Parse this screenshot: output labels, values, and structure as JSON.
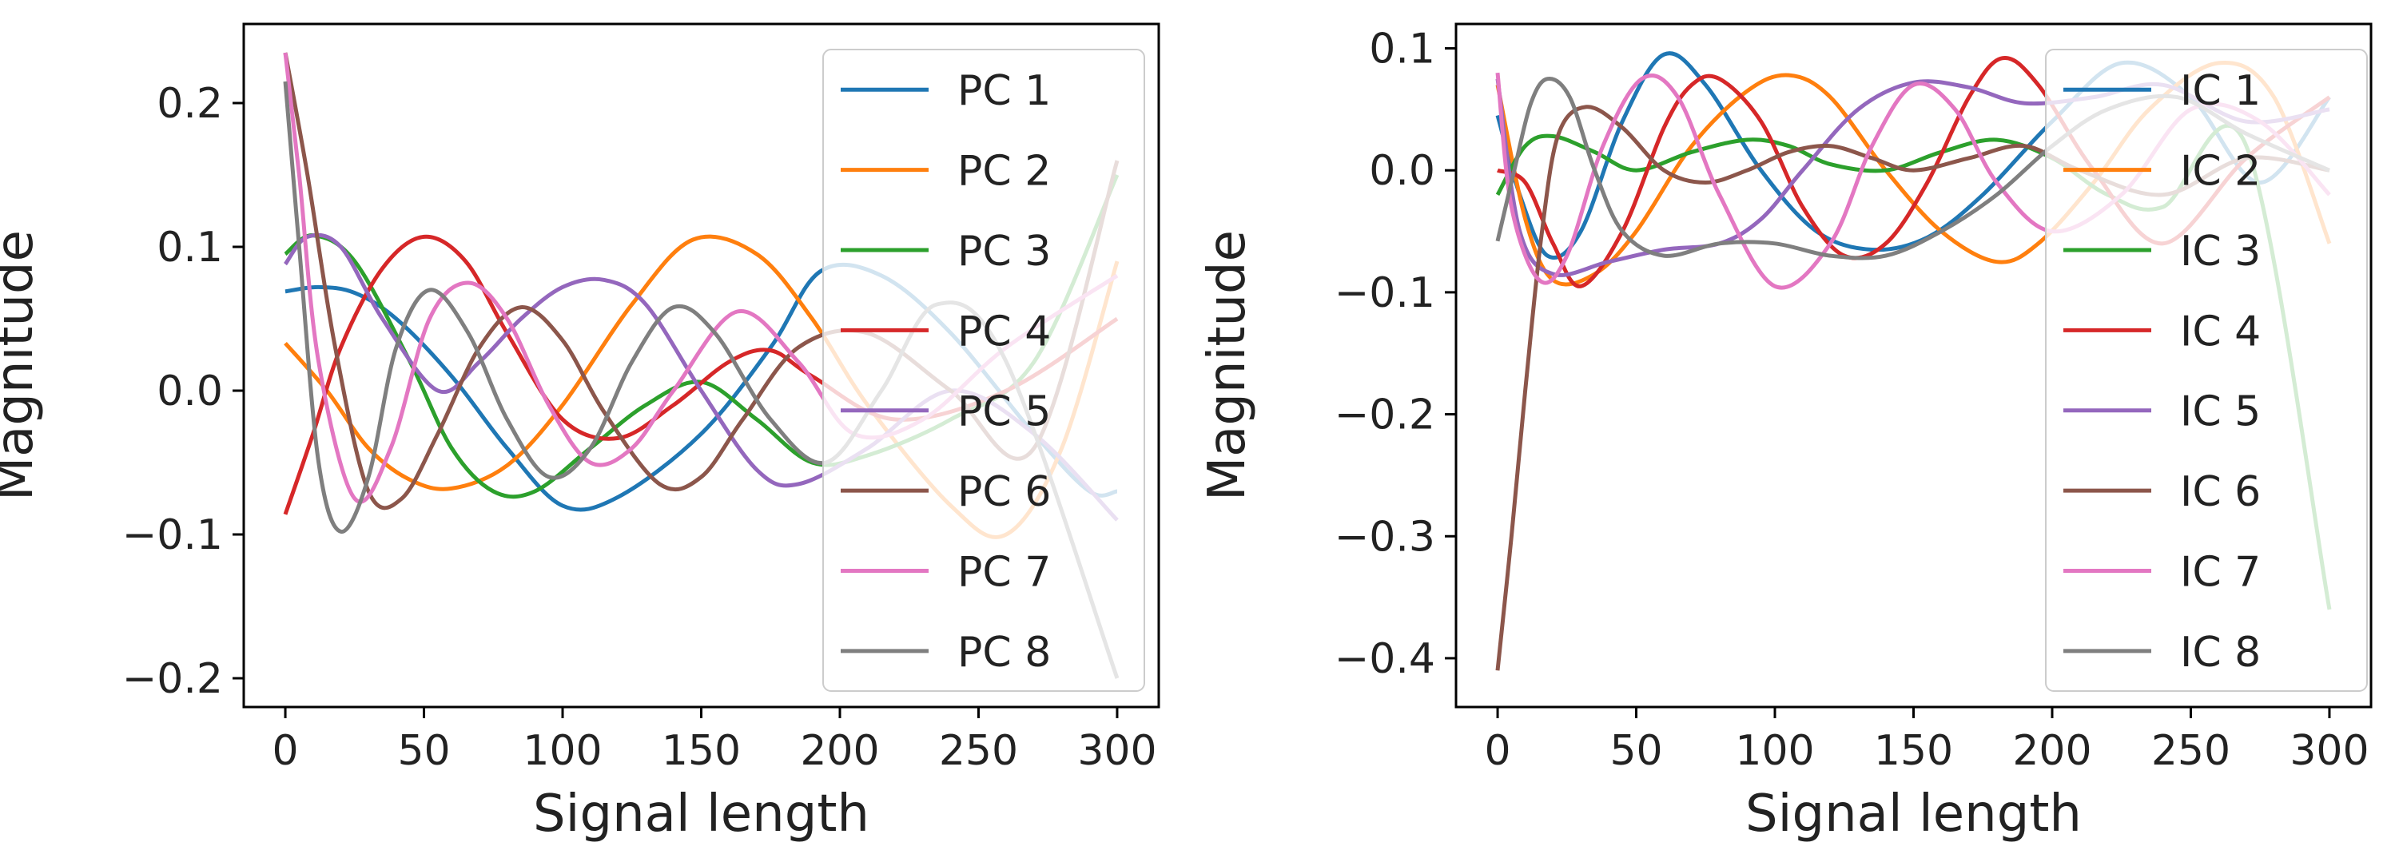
{
  "colors": [
    "#1f77b4",
    "#ff7f0e",
    "#2ca02c",
    "#d62728",
    "#9467bd",
    "#8c564b",
    "#e377c2",
    "#7f7f7f"
  ],
  "chart_data": [
    {
      "type": "line",
      "title": "",
      "xlabel": "Signal length",
      "ylabel": "Magnitude",
      "xlim": [
        -15,
        315
      ],
      "ylim": [
        -0.22,
        0.255
      ],
      "xticks": [
        0,
        50,
        100,
        150,
        200,
        250,
        300
      ],
      "yticks": [
        -0.2,
        -0.1,
        0.0,
        0.1,
        0.2
      ],
      "xtick_labels": [
        "0",
        "50",
        "100",
        "150",
        "200",
        "250",
        "300"
      ],
      "ytick_labels": [
        "−0.2",
        "−0.1",
        "0.0",
        "0.1",
        "0.2"
      ],
      "legend_position": "right",
      "series": [
        {
          "name": "PC 1",
          "x": [
            0,
            12,
            25,
            40,
            60,
            80,
            100,
            120,
            150,
            175,
            193,
            215,
            240,
            270,
            290,
            300
          ],
          "y": [
            0.069,
            0.072,
            0.068,
            0.05,
            0.01,
            -0.04,
            -0.08,
            -0.074,
            -0.03,
            0.03,
            0.083,
            0.08,
            0.04,
            -0.03,
            -0.07,
            -0.07
          ]
        },
        {
          "name": "PC 2",
          "x": [
            0,
            15,
            30,
            45,
            60,
            80,
            100,
            125,
            147,
            170,
            190,
            210,
            240,
            260,
            280,
            300
          ],
          "y": [
            0.033,
            0.0,
            -0.04,
            -0.062,
            -0.068,
            -0.052,
            -0.01,
            0.06,
            0.105,
            0.095,
            0.05,
            -0.01,
            -0.08,
            -0.1,
            -0.04,
            0.09
          ]
        },
        {
          "name": "PC 3",
          "x": [
            0,
            10,
            25,
            45,
            60,
            75,
            90,
            110,
            130,
            150,
            170,
            190,
            210,
            240,
            270,
            300
          ],
          "y": [
            0.095,
            0.108,
            0.09,
            0.02,
            -0.04,
            -0.07,
            -0.07,
            -0.04,
            -0.01,
            0.006,
            -0.02,
            -0.05,
            -0.045,
            -0.02,
            0.02,
            0.15
          ]
        },
        {
          "name": "PC 4",
          "x": [
            0,
            10,
            20,
            35,
            50,
            65,
            80,
            100,
            120,
            140,
            160,
            175,
            190,
            220,
            260,
            300
          ],
          "y": [
            -0.086,
            -0.03,
            0.03,
            0.085,
            0.107,
            0.09,
            0.04,
            -0.02,
            -0.033,
            -0.01,
            0.02,
            0.028,
            0.01,
            -0.02,
            0.0,
            0.05
          ]
        },
        {
          "name": "PC 5",
          "x": [
            0,
            8,
            20,
            35,
            55,
            70,
            85,
            100,
            115,
            130,
            150,
            170,
            185,
            210,
            240,
            270,
            300
          ],
          "y": [
            0.088,
            0.107,
            0.1,
            0.05,
            0.0,
            0.02,
            0.05,
            0.072,
            0.077,
            0.06,
            0.0,
            -0.055,
            -0.065,
            -0.04,
            0.0,
            -0.03,
            -0.09
          ]
        },
        {
          "name": "PC 6",
          "x": [
            0,
            8,
            18,
            30,
            42,
            55,
            70,
            85,
            100,
            115,
            135,
            150,
            165,
            185,
            210,
            240,
            270,
            300
          ],
          "y": [
            0.235,
            0.15,
            0.03,
            -0.07,
            -0.075,
            -0.03,
            0.03,
            0.058,
            0.035,
            -0.015,
            -0.065,
            -0.06,
            -0.02,
            0.03,
            0.04,
            0.0,
            -0.04,
            0.16
          ]
        },
        {
          "name": "PC 7",
          "x": [
            0,
            5,
            12,
            25,
            38,
            52,
            66,
            80,
            95,
            110,
            125,
            140,
            163,
            185,
            205,
            230,
            260,
            300
          ],
          "y": [
            0.235,
            0.15,
            0.02,
            -0.075,
            -0.04,
            0.05,
            0.075,
            0.05,
            -0.01,
            -0.05,
            -0.04,
            0.0,
            0.055,
            0.02,
            -0.03,
            -0.02,
            0.03,
            0.08
          ]
        },
        {
          "name": "PC 8",
          "x": [
            0,
            5,
            12,
            20,
            30,
            40,
            52,
            66,
            80,
            95,
            110,
            125,
            140,
            155,
            175,
            195,
            215,
            235,
            260,
            300
          ],
          "y": [
            0.215,
            0.1,
            -0.05,
            -0.098,
            -0.06,
            0.03,
            0.07,
            0.04,
            -0.02,
            -0.06,
            -0.04,
            0.02,
            0.058,
            0.04,
            -0.02,
            -0.05,
            0.0,
            0.06,
            0.02,
            -0.2
          ]
        }
      ]
    },
    {
      "type": "line",
      "title": "",
      "xlabel": "Signal length",
      "ylabel": "Magnitude",
      "xlim": [
        -15,
        315
      ],
      "ylim": [
        -0.44,
        0.12
      ],
      "xticks": [
        0,
        50,
        100,
        150,
        200,
        250,
        300
      ],
      "yticks": [
        -0.4,
        -0.3,
        -0.2,
        -0.1,
        0.0,
        0.1
      ],
      "xtick_labels": [
        "0",
        "50",
        "100",
        "150",
        "200",
        "250",
        "300"
      ],
      "ytick_labels": [
        "−0.4",
        "−0.3",
        "−0.2",
        "−0.1",
        "0.0",
        "0.1"
      ],
      "legend_position": "right",
      "series": [
        {
          "name": "IC 1",
          "x": [
            0,
            8,
            18,
            30,
            45,
            60,
            75,
            95,
            115,
            135,
            155,
            175,
            200,
            225,
            250,
            275,
            300
          ],
          "y": [
            0.045,
            -0.02,
            -0.07,
            -0.05,
            0.04,
            0.095,
            0.07,
            0.0,
            -0.05,
            -0.065,
            -0.055,
            -0.02,
            0.04,
            0.088,
            0.06,
            -0.01,
            0.06
          ]
        },
        {
          "name": "IC 2",
          "x": [
            0,
            10,
            20,
            35,
            50,
            70,
            90,
            105,
            120,
            140,
            160,
            180,
            195,
            215,
            235,
            260,
            280,
            300
          ],
          "y": [
            0.07,
            -0.04,
            -0.09,
            -0.085,
            -0.05,
            0.02,
            0.065,
            0.078,
            0.06,
            0.0,
            -0.05,
            -0.075,
            -0.06,
            -0.01,
            0.05,
            0.088,
            0.06,
            -0.06
          ]
        },
        {
          "name": "IC 3",
          "x": [
            0,
            10,
            20,
            35,
            50,
            70,
            90,
            105,
            120,
            140,
            160,
            180,
            200,
            220,
            240,
            270,
            300
          ],
          "y": [
            -0.02,
            0.02,
            0.028,
            0.015,
            0.0,
            0.015,
            0.025,
            0.02,
            0.005,
            0.0,
            0.015,
            0.025,
            0.01,
            -0.02,
            -0.03,
            0.02,
            -0.36
          ]
        },
        {
          "name": "IC 4",
          "x": [
            0,
            10,
            20,
            30,
            45,
            60,
            70,
            80,
            95,
            110,
            125,
            140,
            155,
            170,
            182,
            195,
            215,
            240,
            270,
            300
          ],
          "y": [
            0.0,
            -0.01,
            -0.06,
            -0.095,
            -0.05,
            0.035,
            0.07,
            0.075,
            0.04,
            -0.03,
            -0.07,
            -0.06,
            -0.01,
            0.06,
            0.092,
            0.07,
            0.0,
            -0.06,
            0.01,
            0.06
          ]
        },
        {
          "name": "IC 5",
          "x": [
            0,
            8,
            20,
            40,
            60,
            80,
            95,
            110,
            130,
            150,
            170,
            190,
            215,
            240,
            270,
            300
          ],
          "y": [
            0.075,
            -0.05,
            -0.085,
            -0.075,
            -0.065,
            -0.06,
            -0.04,
            0.0,
            0.05,
            0.072,
            0.068,
            0.055,
            0.06,
            0.07,
            0.04,
            0.05
          ]
        },
        {
          "name": "IC 6",
          "x": [
            0,
            5,
            10,
            16,
            22,
            32,
            45,
            60,
            75,
            90,
            105,
            120,
            135,
            150,
            170,
            190,
            210,
            240,
            270,
            300
          ],
          "y": [
            -0.41,
            -0.3,
            -0.18,
            -0.05,
            0.03,
            0.052,
            0.035,
            0.0,
            -0.01,
            0.0,
            0.015,
            0.02,
            0.01,
            0.0,
            0.01,
            0.02,
            0.0,
            -0.02,
            0.01,
            0.0
          ]
        },
        {
          "name": "IC 7",
          "x": [
            0,
            5,
            15,
            25,
            38,
            52,
            65,
            80,
            100,
            120,
            135,
            150,
            165,
            180,
            200,
            225,
            250,
            275,
            300
          ],
          "y": [
            0.08,
            -0.03,
            -0.09,
            -0.07,
            0.02,
            0.075,
            0.06,
            -0.02,
            -0.095,
            -0.06,
            0.02,
            0.07,
            0.05,
            -0.01,
            -0.05,
            -0.02,
            0.05,
            0.04,
            -0.02
          ]
        },
        {
          "name": "IC 8",
          "x": [
            0,
            6,
            12,
            18,
            26,
            35,
            45,
            60,
            80,
            100,
            120,
            140,
            160,
            180,
            200,
            220,
            245,
            270,
            300
          ],
          "y": [
            -0.058,
            0.0,
            0.055,
            0.075,
            0.06,
            0.0,
            -0.05,
            -0.07,
            -0.06,
            -0.06,
            -0.07,
            -0.07,
            -0.05,
            -0.02,
            0.02,
            0.05,
            0.06,
            0.03,
            0.0
          ]
        }
      ]
    }
  ]
}
